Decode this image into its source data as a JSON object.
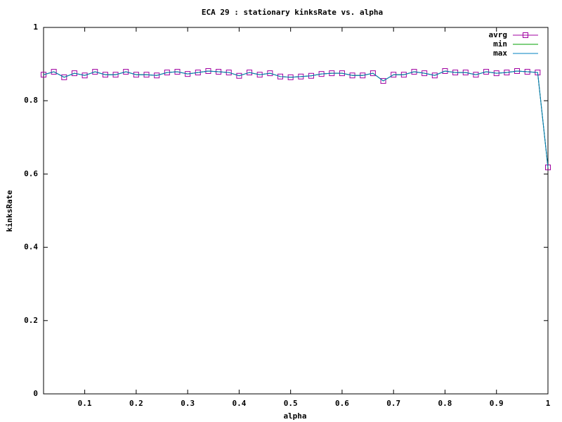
{
  "chart_data": {
    "type": "line",
    "title": "ECA 29 : stationary kinksRate vs. alpha",
    "x_label": "alpha",
    "y_label": "kinksRate",
    "x": [
      0.02,
      0.04,
      0.06,
      0.08,
      0.1,
      0.12,
      0.14,
      0.16,
      0.18,
      0.2,
      0.22,
      0.24,
      0.26,
      0.28,
      0.3,
      0.32,
      0.34,
      0.36,
      0.38,
      0.4,
      0.42,
      0.44,
      0.46,
      0.48,
      0.5,
      0.52,
      0.54,
      0.56,
      0.58,
      0.6,
      0.62,
      0.64,
      0.66,
      0.68,
      0.7,
      0.72,
      0.74,
      0.76,
      0.78,
      0.8,
      0.82,
      0.84,
      0.86,
      0.88,
      0.9,
      0.92,
      0.94,
      0.96,
      0.98,
      1
    ],
    "series": [
      {
        "name": "avrg",
        "color": "#a000a0",
        "marker": "square",
        "values": [
          0.871,
          0.879,
          0.864,
          0.875,
          0.869,
          0.879,
          0.871,
          0.871,
          0.879,
          0.871,
          0.871,
          0.869,
          0.877,
          0.879,
          0.873,
          0.877,
          0.881,
          0.879,
          0.877,
          0.868,
          0.877,
          0.871,
          0.875,
          0.866,
          0.864,
          0.866,
          0.868,
          0.873,
          0.875,
          0.875,
          0.869,
          0.869,
          0.875,
          0.854,
          0.871,
          0.871,
          0.879,
          0.875,
          0.869,
          0.881,
          0.877,
          0.877,
          0.871,
          0.879,
          0.875,
          0.877,
          0.881,
          0.879,
          0.877,
          0.618
        ]
      },
      {
        "name": "min",
        "color": "#00a000",
        "values": [
          0.871,
          0.879,
          0.864,
          0.875,
          0.869,
          0.879,
          0.871,
          0.871,
          0.879,
          0.871,
          0.871,
          0.869,
          0.877,
          0.879,
          0.873,
          0.877,
          0.881,
          0.879,
          0.877,
          0.868,
          0.877,
          0.871,
          0.875,
          0.866,
          0.864,
          0.866,
          0.868,
          0.873,
          0.875,
          0.875,
          0.869,
          0.869,
          0.875,
          0.854,
          0.871,
          0.871,
          0.879,
          0.875,
          0.869,
          0.881,
          0.877,
          0.877,
          0.871,
          0.879,
          0.875,
          0.877,
          0.881,
          0.879,
          0.877,
          0.618
        ]
      },
      {
        "name": "max",
        "color": "#0080c0",
        "values": [
          0.871,
          0.879,
          0.864,
          0.875,
          0.869,
          0.879,
          0.871,
          0.871,
          0.879,
          0.871,
          0.871,
          0.869,
          0.877,
          0.879,
          0.873,
          0.877,
          0.881,
          0.879,
          0.877,
          0.868,
          0.877,
          0.871,
          0.875,
          0.866,
          0.864,
          0.866,
          0.868,
          0.873,
          0.875,
          0.875,
          0.869,
          0.869,
          0.875,
          0.854,
          0.871,
          0.871,
          0.879,
          0.875,
          0.869,
          0.881,
          0.877,
          0.877,
          0.871,
          0.879,
          0.875,
          0.877,
          0.881,
          0.879,
          0.877,
          0.618
        ]
      }
    ],
    "xlim": [
      0.02,
      1
    ],
    "ylim": [
      0,
      1
    ],
    "xticks": [
      0.1,
      0.2,
      0.3,
      0.4,
      0.5,
      0.6,
      0.7,
      0.8,
      0.9,
      1
    ],
    "yticks": [
      0,
      0.2,
      0.4,
      0.6,
      0.8,
      1
    ],
    "legend": "top-right"
  }
}
